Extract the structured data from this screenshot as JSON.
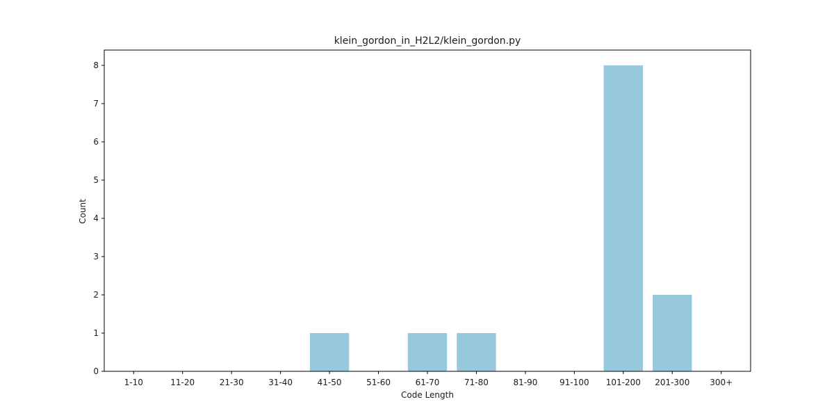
{
  "chart_data": {
    "type": "bar",
    "title": "klein_gordon_in_H2L2/klein_gordon.py",
    "xlabel": "Code Length",
    "ylabel": "Count",
    "categories": [
      "1-10",
      "11-20",
      "21-30",
      "31-40",
      "41-50",
      "51-60",
      "61-70",
      "71-80",
      "81-90",
      "91-100",
      "101-200",
      "201-300",
      "300+"
    ],
    "values": [
      0,
      0,
      0,
      0,
      1,
      0,
      1,
      1,
      0,
      0,
      8,
      2,
      0
    ],
    "ylim": [
      0,
      8.4
    ],
    "yticks": [
      0,
      1,
      2,
      3,
      4,
      5,
      6,
      7,
      8
    ],
    "grid": false,
    "legend": "none",
    "bar_color": "#96c9dc"
  }
}
